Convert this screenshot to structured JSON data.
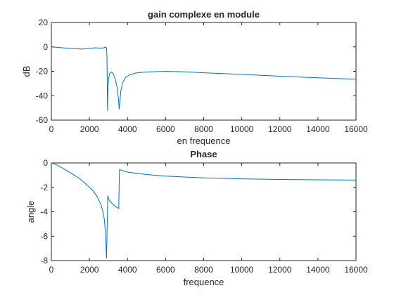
{
  "chart_data": [
    {
      "type": "line",
      "title": "gain complexe en module",
      "xlabel": "en frequence",
      "ylabel": "dB",
      "xlim": [
        0,
        16000
      ],
      "ylim": [
        -60,
        20
      ],
      "xticks": [
        0,
        2000,
        4000,
        6000,
        8000,
        10000,
        12000,
        14000,
        16000
      ],
      "yticks": [
        -60,
        -40,
        -20,
        0,
        20
      ],
      "xtick_labels": [
        "0",
        "2000",
        "4000",
        "6000",
        "8000",
        "10000",
        "12000",
        "14000",
        "16000"
      ],
      "ytick_labels": [
        "-60",
        "-40",
        "-20",
        "0",
        "20"
      ],
      "grid": false,
      "line_color": "#0072bd",
      "series": [
        {
          "x": [
            0,
            400,
            800,
            1200,
            1600,
            2000,
            2300,
            2600,
            2750,
            2820,
            2880,
            2900,
            2920,
            2935,
            2950,
            2965,
            2985,
            3050,
            3150,
            3250,
            3350,
            3450,
            3520,
            3560,
            3600,
            3650,
            3750,
            3900,
            4100,
            4400,
            4800,
            5200,
            5600,
            6000,
            7000,
            8000,
            10000,
            12000,
            14000,
            16000
          ],
          "y": [
            0,
            -0.5,
            -1.0,
            -1.5,
            -1.8,
            -1.2,
            -0.8,
            -1.0,
            -0.8,
            -0.3,
            -0.5,
            -1.5,
            -8,
            -30,
            -52,
            -40,
            -30,
            -22,
            -20.5,
            -22,
            -26,
            -33,
            -42,
            -51,
            -45,
            -36,
            -29,
            -25,
            -23,
            -21.5,
            -20.8,
            -20.4,
            -20.2,
            -20.1,
            -20.4,
            -21.2,
            -22.5,
            -24,
            -25.3,
            -26.5
          ]
        }
      ]
    },
    {
      "type": "line",
      "title": "Phase",
      "xlabel": "frequence",
      "ylabel": "angle",
      "xlim": [
        0,
        16000
      ],
      "ylim": [
        -8,
        0
      ],
      "xticks": [
        0,
        2000,
        4000,
        6000,
        8000,
        10000,
        12000,
        14000,
        16000
      ],
      "yticks": [
        -8,
        -6,
        -4,
        -2,
        0
      ],
      "xtick_labels": [
        "0",
        "2000",
        "4000",
        "6000",
        "8000",
        "10000",
        "12000",
        "14000",
        "16000"
      ],
      "ytick_labels": [
        "-8",
        "-6",
        "-4",
        "-2",
        "0"
      ],
      "grid": false,
      "line_color": "#0072bd",
      "series": [
        {
          "x": [
            0,
            200,
            500,
            1000,
            1500,
            2000,
            2200,
            2400,
            2600,
            2700,
            2780,
            2830,
            2870,
            2885,
            2900,
            2920,
            2960,
            3050,
            3200,
            3350,
            3500,
            3540,
            3560,
            3580,
            3700,
            4000,
            5000,
            6000,
            8000,
            10000,
            12000,
            14000,
            16000
          ],
          "y": [
            0,
            -0.1,
            -0.35,
            -0.8,
            -1.3,
            -2.0,
            -2.3,
            -2.75,
            -3.4,
            -3.95,
            -4.6,
            -5.5,
            -6.7,
            -7.3,
            -7.8,
            -6.0,
            -2.7,
            -3.1,
            -3.35,
            -3.55,
            -3.7,
            -3.72,
            -1.8,
            -0.55,
            -0.6,
            -0.75,
            -0.95,
            -1.08,
            -1.22,
            -1.3,
            -1.35,
            -1.38,
            -1.4
          ]
        }
      ]
    }
  ]
}
